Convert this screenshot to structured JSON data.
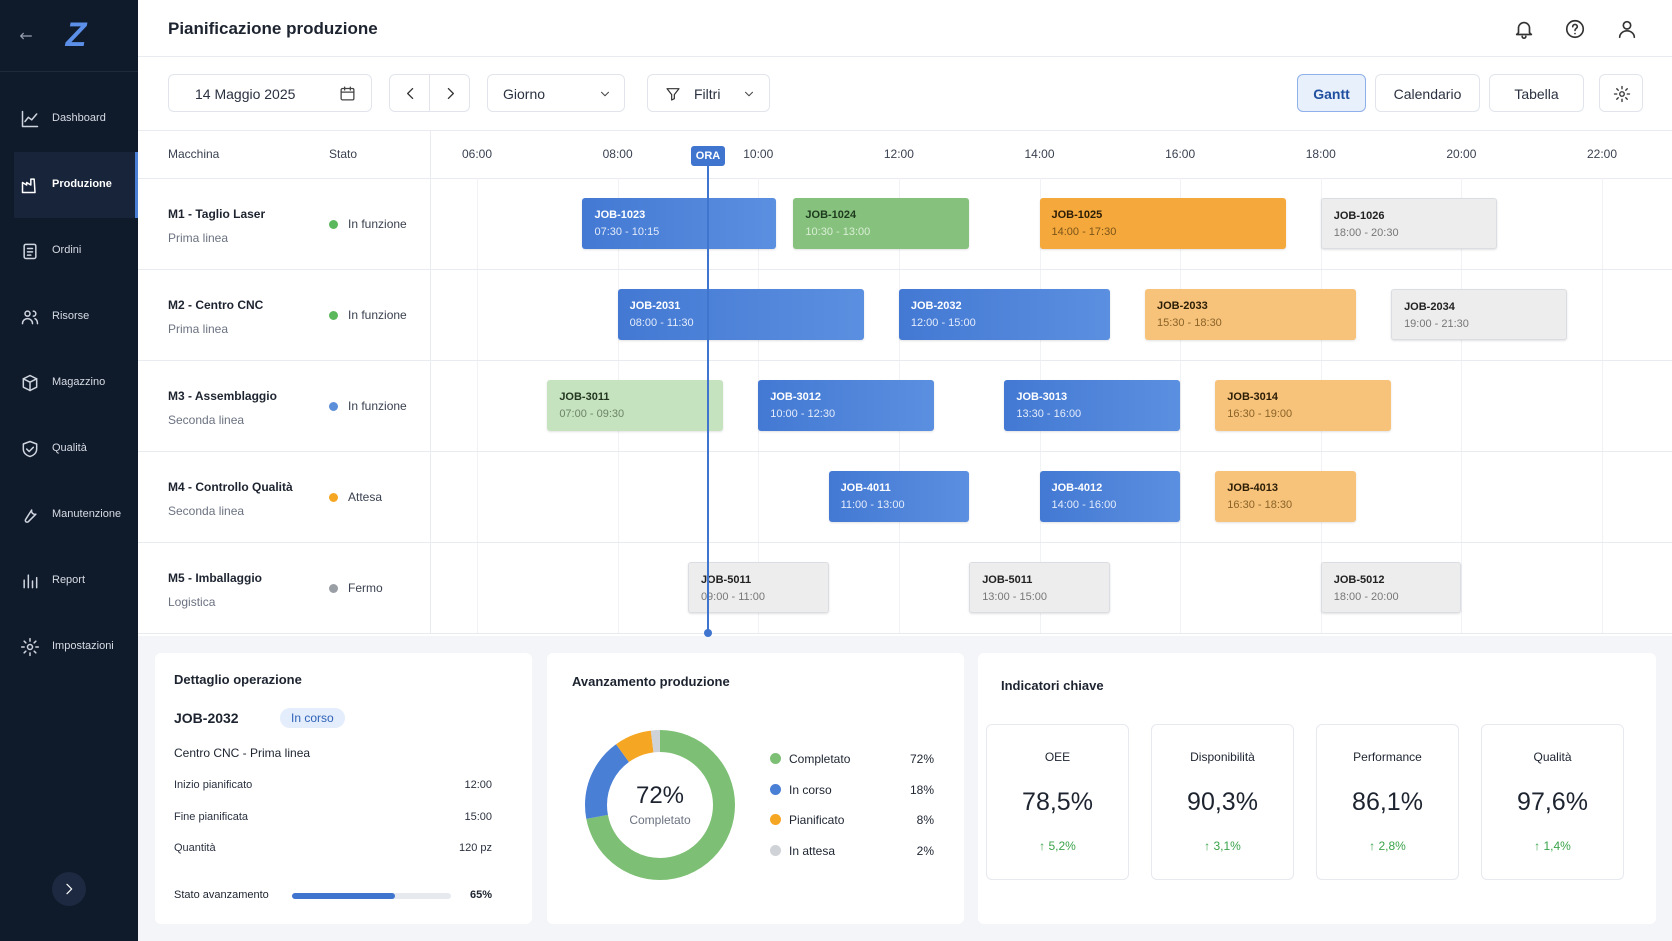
{
  "sidebar": {
    "logo": "Z",
    "menu": [
      "Dashboard",
      "Produzione",
      "Ordini",
      "Risorse",
      "Magazzino",
      "Qualità",
      "Manutenzione",
      "Report",
      "Impostazioni"
    ],
    "active": 1
  },
  "header": {
    "title": "Pianificazione produzione"
  },
  "toolbar": {
    "date": "14 Maggio 2025",
    "view_mode": "Giorno",
    "filter": "Filtri",
    "views": [
      "Gantt",
      "Calendario",
      "Tabella"
    ],
    "active_view": 0
  },
  "gantt": {
    "columns": [
      "Macchina",
      "Stato"
    ],
    "now_label": "ORA",
    "hours": [
      "06:00",
      "08:00",
      "10:00",
      "12:00",
      "14:00",
      "16:00",
      "18:00",
      "20:00",
      "22:00"
    ],
    "machines": [
      {
        "name": "M1 - Taglio Laser",
        "line": "Prima linea",
        "state": "In funzione",
        "state_color": "#5cb85c",
        "jobs": [
          {
            "id": "JOB-1023",
            "time": "07:30 - 10:15",
            "kind": "blue"
          },
          {
            "id": "JOB-1024",
            "time": "10:30 - 13:00",
            "kind": "green"
          },
          {
            "id": "JOB-1025",
            "time": "14:00 - 17:30",
            "kind": "orange"
          },
          {
            "id": "JOB-1026",
            "time": "18:00 - 20:30",
            "kind": "gray"
          }
        ]
      },
      {
        "name": "M2 - Centro CNC",
        "line": "Prima linea",
        "state": "In funzione",
        "state_color": "#5cb85c",
        "jobs": [
          {
            "id": "JOB-2031",
            "time": "08:00 - 11:30",
            "kind": "blue"
          },
          {
            "id": "JOB-2032",
            "time": "12:00 - 15:00",
            "kind": "blue"
          },
          {
            "id": "JOB-2033",
            "time": "15:30 - 18:30",
            "kind": "orange-light"
          },
          {
            "id": "JOB-2034",
            "time": "19:00 - 21:30",
            "kind": "gray"
          }
        ]
      },
      {
        "name": "M3 - Assemblaggio",
        "line": "Seconda linea",
        "state": "In funzione",
        "state_color": "#5b8fd9",
        "jobs": [
          {
            "id": "JOB-3011",
            "time": "07:00 - 09:30",
            "kind": "green-light"
          },
          {
            "id": "JOB-3012",
            "time": "10:00 - 12:30",
            "kind": "blue"
          },
          {
            "id": "JOB-3013",
            "time": "13:30 - 16:00",
            "kind": "blue"
          },
          {
            "id": "JOB-3014",
            "time": "16:30 - 19:00",
            "kind": "orange-light"
          }
        ]
      },
      {
        "name": "M4 - Controllo Qualità",
        "line": "Seconda linea",
        "state": "Attesa",
        "state_color": "#f5a623",
        "jobs": [
          {
            "id": "JOB-4011",
            "time": "11:00 - 13:00",
            "kind": "blue"
          },
          {
            "id": "JOB-4012",
            "time": "14:00 - 16:00",
            "kind": "blue"
          },
          {
            "id": "JOB-4013",
            "time": "16:30 - 18:30",
            "kind": "orange-light"
          }
        ]
      },
      {
        "name": "M5 - Imballaggio",
        "line": "Logistica",
        "state": "Fermo",
        "state_color": "#9a9ea5",
        "jobs": [
          {
            "id": "JOB-5011",
            "time": "09:00 - 11:00",
            "kind": "gray"
          },
          {
            "id": "JOB-5011",
            "time": "13:00 - 15:00",
            "kind": "gray"
          },
          {
            "id": "JOB-5012",
            "time": "18:00 - 20:00",
            "kind": "gray"
          }
        ]
      }
    ]
  },
  "detail": {
    "title": "Dettaglio operazione",
    "job": "JOB-2032",
    "status": "In corso",
    "place": "Centro CNC - Prima linea",
    "fields": [
      {
        "label": "Inizio pianificato",
        "value": "12:00"
      },
      {
        "label": "Fine pianificata",
        "value": "15:00"
      },
      {
        "label": "Quantità",
        "value": "120 pz"
      }
    ],
    "progress": {
      "label": "Stato avanzamento",
      "value": 65,
      "value_label": "65%"
    }
  },
  "progress": {
    "title": "Avanzamento produzione",
    "center_label": "Completato",
    "series": [
      {
        "name": "Completato",
        "value": 72,
        "label": "72%",
        "color": "#7dbf74"
      },
      {
        "name": "In corso",
        "value": 18,
        "label": "18%",
        "color": "#4a7fd6"
      },
      {
        "name": "Pianificato",
        "value": 8,
        "label": "8%",
        "color": "#f5a623"
      },
      {
        "name": "In attesa",
        "value": 2,
        "label": "2%",
        "color": "#cfd2d6"
      }
    ]
  },
  "kpi": {
    "title": "Indicatori chiave",
    "cards": [
      {
        "label": "OEE",
        "value": "78,5%",
        "delta": "↑ 5,2%"
      },
      {
        "label": "Disponibilità",
        "value": "90,3%",
        "delta": "↑ 3,1%"
      },
      {
        "label": "Performance",
        "value": "86,1%",
        "delta": "↑ 2,8%"
      },
      {
        "label": "Qualità",
        "value": "97,6%",
        "delta": "↑ 1,4%"
      }
    ]
  }
}
